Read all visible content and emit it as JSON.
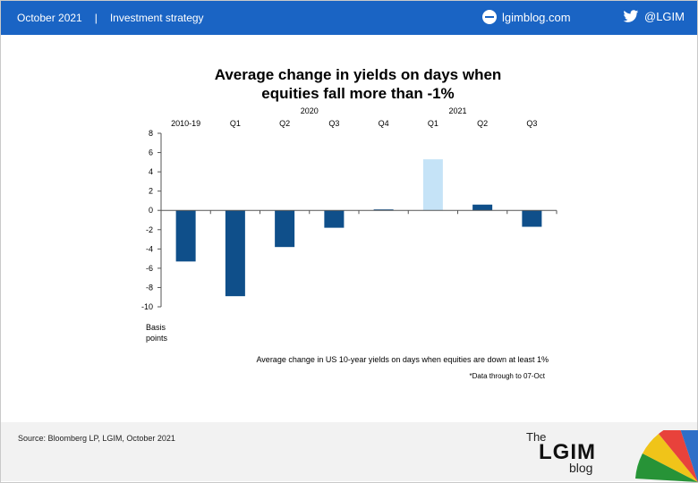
{
  "header": {
    "date": "October 2021",
    "separator": "|",
    "section": "Investment strategy",
    "site": "lgimblog.com",
    "handle": "@LGIM"
  },
  "chart_data": {
    "type": "bar",
    "title": "Average change in yields on days when equities fall more than -1%",
    "title_lines": [
      "Average change in yields on days when",
      "equities fall more than -1%"
    ],
    "categories": [
      "2010-19",
      "Q1",
      "Q2",
      "Q3",
      "Q4",
      "Q1",
      "Q2",
      "Q3"
    ],
    "group_labels": [
      {
        "label": "2020",
        "category_index": 2.5
      },
      {
        "label": "2021",
        "category_index": 5.5
      }
    ],
    "values": [
      -5.3,
      -8.9,
      -3.8,
      -1.8,
      0.1,
      5.3,
      0.6,
      -1.7
    ],
    "bar_colors": [
      "#0f4f8a",
      "#0f4f8a",
      "#0f4f8a",
      "#0f4f8a",
      "#0f4f8a",
      "#c5e3f7",
      "#0f4f8a",
      "#0f4f8a"
    ],
    "ylim": [
      -10,
      8
    ],
    "yticks": [
      8,
      6,
      4,
      2,
      0,
      -2,
      -4,
      -6,
      -8,
      -10
    ],
    "ylabel_lines": [
      "Basis",
      "points"
    ],
    "annotation": "Average change in US 10-year yields on days when equities are down at least 1%",
    "note": "*Data through to 07-Oct"
  },
  "footer": {
    "source": "Source: Bloomberg LP, LGIM, October 2021",
    "logo_the": "The",
    "logo_brand": "LGIM",
    "logo_blog": "blog"
  },
  "colors": {
    "header_bg": "#1a64c4",
    "bar_dark": "#0f4f8a",
    "bar_light": "#c5e3f7",
    "footer_bg": "#f2f2f2"
  }
}
